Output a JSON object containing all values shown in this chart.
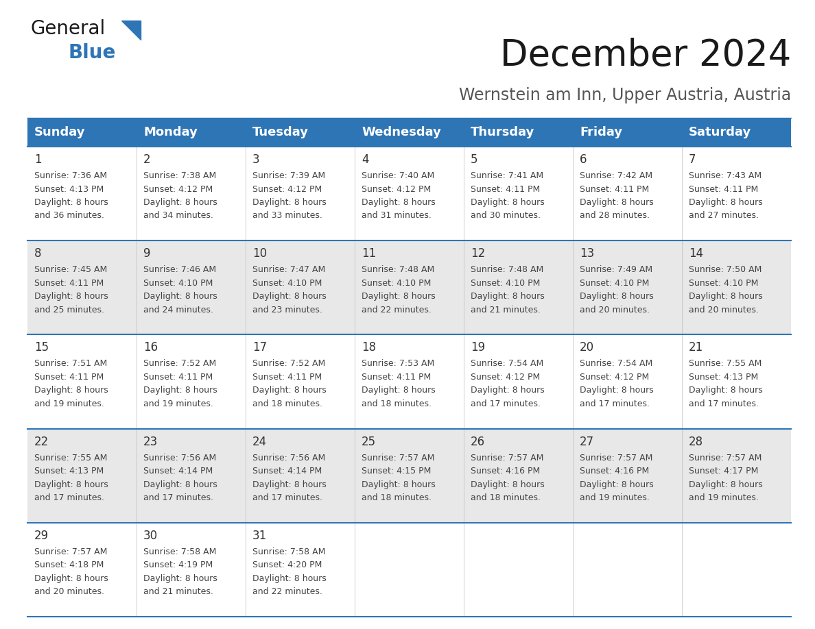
{
  "title": "December 2024",
  "subtitle": "Wernstein am Inn, Upper Austria, Austria",
  "header_color": "#2E75B6",
  "header_text_color": "#FFFFFF",
  "days_of_week": [
    "Sunday",
    "Monday",
    "Tuesday",
    "Wednesday",
    "Thursday",
    "Friday",
    "Saturday"
  ],
  "weeks": [
    [
      {
        "day": "1",
        "sunrise": "7:36 AM",
        "sunset": "4:13 PM",
        "daylight": "8 hours and 36 minutes"
      },
      {
        "day": "2",
        "sunrise": "7:38 AM",
        "sunset": "4:12 PM",
        "daylight": "8 hours and 34 minutes"
      },
      {
        "day": "3",
        "sunrise": "7:39 AM",
        "sunset": "4:12 PM",
        "daylight": "8 hours and 33 minutes"
      },
      {
        "day": "4",
        "sunrise": "7:40 AM",
        "sunset": "4:12 PM",
        "daylight": "8 hours and 31 minutes"
      },
      {
        "day": "5",
        "sunrise": "7:41 AM",
        "sunset": "4:11 PM",
        "daylight": "8 hours and 30 minutes"
      },
      {
        "day": "6",
        "sunrise": "7:42 AM",
        "sunset": "4:11 PM",
        "daylight": "8 hours and 28 minutes"
      },
      {
        "day": "7",
        "sunrise": "7:43 AM",
        "sunset": "4:11 PM",
        "daylight": "8 hours and 27 minutes"
      }
    ],
    [
      {
        "day": "8",
        "sunrise": "7:45 AM",
        "sunset": "4:11 PM",
        "daylight": "8 hours and 25 minutes"
      },
      {
        "day": "9",
        "sunrise": "7:46 AM",
        "sunset": "4:10 PM",
        "daylight": "8 hours and 24 minutes"
      },
      {
        "day": "10",
        "sunrise": "7:47 AM",
        "sunset": "4:10 PM",
        "daylight": "8 hours and 23 minutes"
      },
      {
        "day": "11",
        "sunrise": "7:48 AM",
        "sunset": "4:10 PM",
        "daylight": "8 hours and 22 minutes"
      },
      {
        "day": "12",
        "sunrise": "7:48 AM",
        "sunset": "4:10 PM",
        "daylight": "8 hours and 21 minutes"
      },
      {
        "day": "13",
        "sunrise": "7:49 AM",
        "sunset": "4:10 PM",
        "daylight": "8 hours and 20 minutes"
      },
      {
        "day": "14",
        "sunrise": "7:50 AM",
        "sunset": "4:10 PM",
        "daylight": "8 hours and 20 minutes"
      }
    ],
    [
      {
        "day": "15",
        "sunrise": "7:51 AM",
        "sunset": "4:11 PM",
        "daylight": "8 hours and 19 minutes"
      },
      {
        "day": "16",
        "sunrise": "7:52 AM",
        "sunset": "4:11 PM",
        "daylight": "8 hours and 19 minutes"
      },
      {
        "day": "17",
        "sunrise": "7:52 AM",
        "sunset": "4:11 PM",
        "daylight": "8 hours and 18 minutes"
      },
      {
        "day": "18",
        "sunrise": "7:53 AM",
        "sunset": "4:11 PM",
        "daylight": "8 hours and 18 minutes"
      },
      {
        "day": "19",
        "sunrise": "7:54 AM",
        "sunset": "4:12 PM",
        "daylight": "8 hours and 17 minutes"
      },
      {
        "day": "20",
        "sunrise": "7:54 AM",
        "sunset": "4:12 PM",
        "daylight": "8 hours and 17 minutes"
      },
      {
        "day": "21",
        "sunrise": "7:55 AM",
        "sunset": "4:13 PM",
        "daylight": "8 hours and 17 minutes"
      }
    ],
    [
      {
        "day": "22",
        "sunrise": "7:55 AM",
        "sunset": "4:13 PM",
        "daylight": "8 hours and 17 minutes"
      },
      {
        "day": "23",
        "sunrise": "7:56 AM",
        "sunset": "4:14 PM",
        "daylight": "8 hours and 17 minutes"
      },
      {
        "day": "24",
        "sunrise": "7:56 AM",
        "sunset": "4:14 PM",
        "daylight": "8 hours and 17 minutes"
      },
      {
        "day": "25",
        "sunrise": "7:57 AM",
        "sunset": "4:15 PM",
        "daylight": "8 hours and 18 minutes"
      },
      {
        "day": "26",
        "sunrise": "7:57 AM",
        "sunset": "4:16 PM",
        "daylight": "8 hours and 18 minutes"
      },
      {
        "day": "27",
        "sunrise": "7:57 AM",
        "sunset": "4:16 PM",
        "daylight": "8 hours and 19 minutes"
      },
      {
        "day": "28",
        "sunrise": "7:57 AM",
        "sunset": "4:17 PM",
        "daylight": "8 hours and 19 minutes"
      }
    ],
    [
      {
        "day": "29",
        "sunrise": "7:57 AM",
        "sunset": "4:18 PM",
        "daylight": "8 hours and 20 minutes"
      },
      {
        "day": "30",
        "sunrise": "7:58 AM",
        "sunset": "4:19 PM",
        "daylight": "8 hours and 21 minutes"
      },
      {
        "day": "31",
        "sunrise": "7:58 AM",
        "sunset": "4:20 PM",
        "daylight": "8 hours and 22 minutes"
      },
      null,
      null,
      null,
      null
    ]
  ],
  "bg_color": "#FFFFFF",
  "cell_even_color": "#FFFFFF",
  "cell_odd_color": "#E8E8E8",
  "grid_line_color": "#2E75B6",
  "text_color": "#444444",
  "day_num_color": "#333333",
  "title_fontsize": 38,
  "subtitle_fontsize": 17,
  "header_fontsize": 13,
  "day_num_fontsize": 12,
  "cell_fontsize": 9,
  "logo_general_color": "#1a1a1a",
  "logo_blue_color": "#2E75B6",
  "logo_triangle_color": "#2E75B6"
}
